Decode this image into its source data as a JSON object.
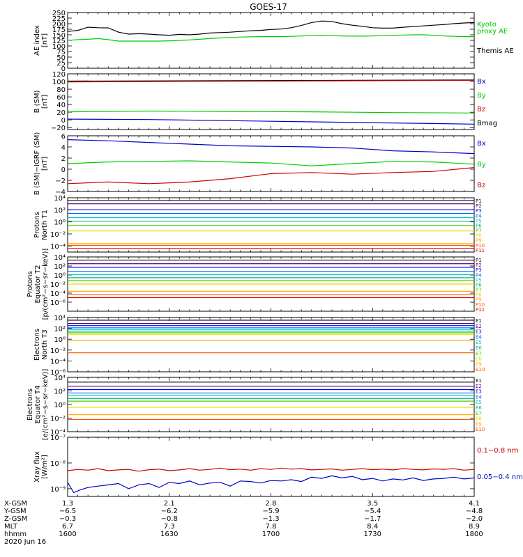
{
  "title": "GOES-17",
  "colors": {
    "black": "#000000",
    "green": "#00cc00",
    "blue": "#0000cc",
    "red": "#cc0000",
    "p": [
      "#000000",
      "#4b0082",
      "#0000ff",
      "#0066ff",
      "#00cccc",
      "#00bb77",
      "#44cc00",
      "#dddd00",
      "#ffaa00",
      "#ff5500",
      "#dd0000"
    ],
    "e": [
      "#000000",
      "#4b0082",
      "#0000ff",
      "#0066ff",
      "#00cccc",
      "#00bb77",
      "#44cc00",
      "#dddd00",
      "#ffaa00",
      "#ff5500"
    ]
  },
  "chart_data": [
    {
      "type": "line",
      "id": "ae",
      "ylabel": "AE index\n[nT]",
      "ylim": [
        0,
        250
      ],
      "yticks": [
        "0",
        "25",
        "50",
        "75",
        "100",
        "125",
        "150",
        "175",
        "200",
        "225",
        "250"
      ],
      "tick_values": [
        0,
        25,
        50,
        75,
        100,
        125,
        150,
        175,
        200,
        225,
        250
      ],
      "legend": [
        {
          "text": "Kyoto",
          "color": "#00cc00"
        },
        {
          "text": "proxy AE",
          "color": "#00cc00"
        },
        {
          "text": "Themis AE",
          "color": "#000000"
        }
      ],
      "series": [
        {
          "name": "Themis AE",
          "color": "#000000",
          "x": [
            0,
            5,
            10,
            15,
            20,
            25,
            30,
            35,
            40,
            45,
            50,
            55,
            60,
            65,
            70,
            75,
            80,
            85,
            90,
            95,
            100,
            105,
            110,
            115,
            120,
            125,
            130,
            135,
            140,
            145,
            150,
            155,
            160,
            165,
            170,
            175,
            180,
            185,
            190,
            195,
            200
          ],
          "values": [
            165,
            170,
            184,
            182,
            181,
            162,
            153,
            155,
            153,
            150,
            148,
            152,
            150,
            153,
            158,
            160,
            162,
            165,
            168,
            170,
            174,
            176,
            182,
            192,
            205,
            212,
            210,
            200,
            193,
            188,
            182,
            180,
            180,
            184,
            187,
            190,
            193,
            196,
            200,
            203,
            205
          ]
        },
        {
          "name": "Kyoto proxy AE",
          "color": "#00cc00",
          "x": [
            0,
            5,
            10,
            15,
            20,
            25,
            30,
            35,
            40,
            45,
            50,
            55,
            60,
            65,
            70,
            75,
            80,
            85,
            90,
            95,
            100,
            105,
            110,
            115,
            120,
            125,
            130,
            135,
            140,
            145,
            150,
            155,
            160,
            165,
            170,
            175,
            180,
            185,
            190,
            195,
            200
          ],
          "values": [
            125,
            128,
            130,
            133,
            128,
            122,
            122,
            122,
            122,
            122,
            123,
            125,
            127,
            130,
            133,
            136,
            138,
            140,
            141,
            142,
            142,
            142,
            143,
            145,
            146,
            147,
            146,
            145,
            144,
            144,
            145,
            146,
            148,
            149,
            150,
            150,
            148,
            145,
            143,
            142,
            142
          ]
        }
      ]
    },
    {
      "type": "line",
      "id": "bsm",
      "ylabel": "B (SM)\n[nT]",
      "ylim": [
        -25,
        120
      ],
      "yticks": [
        "−20",
        "0",
        "20",
        "40",
        "60",
        "80",
        "100",
        "120"
      ],
      "tick_values": [
        -20,
        0,
        20,
        40,
        60,
        80,
        100,
        120
      ],
      "legend": [
        {
          "text": "Bx",
          "color": "#0000cc"
        },
        {
          "text": "By",
          "color": "#00cc00"
        },
        {
          "text": "Bz",
          "color": "#cc0000"
        },
        {
          "text": "Bmag",
          "color": "#000000"
        }
      ],
      "series": [
        {
          "name": "Bmag",
          "color": "#000000",
          "x": [
            0,
            200
          ],
          "values": [
            101,
            104
          ]
        },
        {
          "name": "Bz",
          "color": "#cc0000",
          "x": [
            0,
            50,
            100,
            150,
            200
          ],
          "values": [
            99,
            100,
            101,
            102,
            103
          ]
        },
        {
          "name": "By",
          "color": "#00cc00",
          "x": [
            0,
            40,
            80,
            120,
            160,
            200
          ],
          "values": [
            21,
            23,
            22,
            21,
            19,
            18
          ]
        },
        {
          "name": "Bx",
          "color": "#0000cc",
          "x": [
            0,
            40,
            80,
            120,
            160,
            200
          ],
          "values": [
            2,
            1,
            -2,
            -5,
            -8,
            -11
          ]
        }
      ]
    },
    {
      "type": "line",
      "id": "bigrf",
      "ylabel": "B (SM)−IGRF (SM)\n[nT]",
      "ylim": [
        -4,
        6
      ],
      "yticks": [
        "−4",
        "−2",
        "0",
        "2",
        "4",
        "6"
      ],
      "tick_values": [
        -4,
        -2,
        0,
        2,
        4,
        6
      ],
      "legend": [
        {
          "text": "Bx",
          "color": "#0000cc"
        },
        {
          "text": "By",
          "color": "#00cc00"
        },
        {
          "text": "Bz",
          "color": "#cc0000"
        }
      ],
      "series": [
        {
          "name": "Bx",
          "color": "#0000cc",
          "x": [
            0,
            20,
            40,
            60,
            80,
            100,
            120,
            140,
            160,
            180,
            200
          ],
          "values": [
            5.3,
            5.1,
            4.8,
            4.5,
            4.2,
            4.1,
            4.0,
            3.8,
            3.3,
            3.1,
            2.8
          ]
        },
        {
          "name": "By",
          "color": "#00cc00",
          "x": [
            0,
            20,
            40,
            60,
            80,
            100,
            120,
            140,
            160,
            180,
            200
          ],
          "values": [
            1.0,
            1.3,
            1.4,
            1.5,
            1.3,
            1.1,
            0.6,
            1.0,
            1.4,
            1.3,
            0.9
          ]
        },
        {
          "name": "Bz",
          "color": "#cc0000",
          "x": [
            0,
            20,
            40,
            60,
            80,
            100,
            120,
            140,
            160,
            180,
            200
          ],
          "values": [
            -2.6,
            -2.3,
            -2.6,
            -2.3,
            -1.7,
            -0.8,
            -0.6,
            -0.9,
            -0.6,
            -0.4,
            0.3
          ]
        }
      ]
    },
    {
      "type": "line",
      "id": "p1",
      "ylabel": "Protons\nNorth T1",
      "log": true,
      "ylim": [
        -5,
        4
      ],
      "yticks": [
        "10⁻⁴",
        "10⁻²",
        "10⁰",
        "10²",
        "10⁴"
      ],
      "tick_values": [
        -4,
        -2,
        0,
        2,
        4
      ],
      "legend": [
        "P1",
        "P2",
        "P3",
        "P4",
        "P5",
        "P6",
        "P7",
        "P8",
        "P9",
        "P10",
        "P11"
      ],
      "levels": [
        3.5,
        3.0,
        2.0,
        1.4,
        0.7,
        0.1,
        -0.6,
        -1.5,
        -3.6,
        -3.9,
        -4.4
      ]
    },
    {
      "type": "line",
      "id": "p2",
      "ylabel": "Protons\nEquator T2\n[p/(cm²−s−sr−keV)]",
      "log": true,
      "ylim": [
        -8,
        4
      ],
      "yticks": [
        "10⁻⁶",
        "10⁻⁴",
        "10⁻²",
        "10⁰",
        "10²",
        "10⁴"
      ],
      "tick_values": [
        -6,
        -4,
        -2,
        0,
        2,
        4
      ],
      "legend": [
        "P1",
        "P2",
        "P3",
        "P4",
        "P5",
        "P6",
        "P7",
        "P8",
        "P9",
        "P10",
        "P11"
      ],
      "levels": [
        3.3,
        2.5,
        1.7,
        0.8,
        0.1,
        -0.6,
        -1.2,
        -2.0,
        -3.6,
        -4.3,
        -5.0
      ]
    },
    {
      "type": "line",
      "id": "e1",
      "ylabel": "Electrons\nNorth T3",
      "log": true,
      "ylim": [
        -6,
        4
      ],
      "yticks": [
        "10⁻⁶",
        "10⁻⁴",
        "10⁻²",
        "10⁰",
        "10²",
        "10⁴"
      ],
      "tick_values": [
        -6,
        -4,
        -2,
        0,
        2,
        4
      ],
      "legend": [
        "E1",
        "E2",
        "E3",
        "E4",
        "E5",
        "E6",
        "E7",
        "E8",
        "E9",
        "E10"
      ],
      "levels": [
        3.5,
        2.9,
        2.5,
        2.1,
        1.8,
        1.5,
        1.2,
        0.9,
        -0.2,
        -2.5
      ]
    },
    {
      "type": "line",
      "id": "e2",
      "ylabel": "Electrons\nEquator T4\n[e/(cm²−s−sr−keV)]",
      "log": true,
      "ylim": [
        -4,
        4
      ],
      "yticks": [
        "10⁻⁴",
        "10⁻²",
        "10⁰",
        "10²",
        "10⁴"
      ],
      "tick_values": [
        -4,
        -2,
        0,
        2,
        4
      ],
      "legend": [
        "E1",
        "E2",
        "E3",
        "E4",
        "E5",
        "E6",
        "E7",
        "E8",
        "E9",
        "E10"
      ],
      "levels": [
        3.3,
        2.7,
        2.2,
        1.7,
        1.3,
        0.9,
        0.5,
        -0.4,
        -1.5,
        -2.2
      ]
    },
    {
      "type": "line",
      "id": "xray",
      "ylabel": "Xray flux\n[W/m²]",
      "log": true,
      "ylim": [
        -9.3,
        -7
      ],
      "yticks": [
        "10⁻⁹",
        "10⁻⁸",
        "10⁻⁷"
      ],
      "tick_values": [
        -9,
        -8,
        -7
      ],
      "legend": [
        {
          "text": "0.1−0.8 nm",
          "color": "#cc0000"
        },
        {
          "text": "0.05−0.4 nm",
          "color": "#0000cc"
        }
      ],
      "series": [
        {
          "name": "0.1−0.8 nm",
          "color": "#cc0000",
          "x": [
            0,
            5,
            10,
            15,
            20,
            25,
            30,
            35,
            40,
            45,
            50,
            55,
            60,
            65,
            70,
            75,
            80,
            85,
            90,
            95,
            100,
            105,
            110,
            115,
            120,
            125,
            130,
            135,
            140,
            145,
            150,
            155,
            160,
            165,
            170,
            175,
            180,
            185,
            190,
            195,
            200
          ],
          "values": [
            -8.3,
            -8.25,
            -8.28,
            -8.22,
            -8.3,
            -8.27,
            -8.25,
            -8.32,
            -8.26,
            -8.24,
            -8.3,
            -8.27,
            -8.22,
            -8.28,
            -8.25,
            -8.2,
            -8.26,
            -8.24,
            -8.28,
            -8.22,
            -8.25,
            -8.2,
            -8.24,
            -8.22,
            -8.27,
            -8.25,
            -8.23,
            -8.28,
            -8.25,
            -8.22,
            -8.26,
            -8.24,
            -8.27,
            -8.22,
            -8.25,
            -8.27,
            -8.23,
            -8.25,
            -8.22,
            -8.28,
            -8.25
          ]
        },
        {
          "name": "0.05−0.4 nm",
          "color": "#0000cc",
          "x": [
            0,
            3,
            6,
            10,
            15,
            20,
            25,
            30,
            35,
            40,
            45,
            50,
            55,
            60,
            65,
            70,
            75,
            80,
            85,
            90,
            95,
            100,
            105,
            110,
            115,
            120,
            125,
            130,
            135,
            140,
            145,
            150,
            155,
            160,
            165,
            170,
            175,
            180,
            185,
            190,
            195,
            200
          ],
          "values": [
            -8.75,
            -9.15,
            -9.05,
            -8.95,
            -8.9,
            -8.85,
            -8.8,
            -9.0,
            -8.85,
            -8.8,
            -8.95,
            -8.75,
            -8.8,
            -8.7,
            -8.85,
            -8.78,
            -8.75,
            -8.9,
            -8.7,
            -8.72,
            -8.78,
            -8.68,
            -8.7,
            -8.65,
            -8.72,
            -8.55,
            -8.6,
            -8.5,
            -8.58,
            -8.52,
            -8.65,
            -8.6,
            -8.7,
            -8.62,
            -8.66,
            -8.58,
            -8.68,
            -8.62,
            -8.6,
            -8.55,
            -8.62,
            -8.58
          ]
        }
      ]
    }
  ],
  "xaxis": {
    "xlim": [
      0,
      200
    ],
    "major": [
      0,
      50,
      100,
      150,
      200
    ],
    "row_labels": [
      "X-GSM",
      "Y-GSM",
      "Z-GSM",
      "MLT",
      "hhmm",
      "2020 Jun 16"
    ],
    "rows": [
      [
        "1.3",
        "2.1",
        "2.8",
        "3.5",
        "4.1"
      ],
      [
        "−6.5",
        "−6.2",
        "−5.9",
        "−5.4",
        "−4.8"
      ],
      [
        "−0.3",
        "−0.8",
        "−1.3",
        "−1.7",
        "−2.0"
      ],
      [
        "6.7",
        "7.3",
        "7.8",
        "8.4",
        "8.9"
      ],
      [
        "1600",
        "1630",
        "1700",
        "1730",
        "1800"
      ]
    ]
  }
}
